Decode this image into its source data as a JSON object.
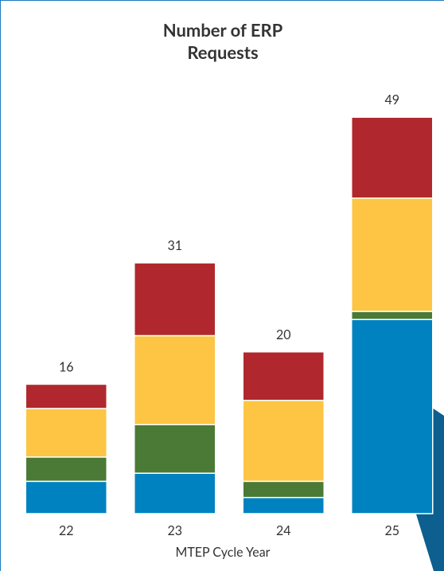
{
  "chart_data": {
    "type": "stacked_bar",
    "title": "Number of ERP Requests",
    "x_label": "MTEP Cycle Year",
    "categories": [
      "22",
      "23",
      "24",
      "25"
    ],
    "series": [
      {
        "color": "#0082c0",
        "values": [
          4,
          5,
          2,
          24
        ]
      },
      {
        "color": "#4a7a35",
        "values": [
          3,
          6,
          2,
          1
        ]
      },
      {
        "color": "#fdc543",
        "values": [
          6,
          11,
          10,
          14
        ]
      },
      {
        "color": "#b0282d",
        "values": [
          3,
          9,
          6,
          10
        ]
      }
    ],
    "totals": [
      16,
      31,
      20,
      49
    ],
    "ylim": [
      0,
      50
    ]
  }
}
